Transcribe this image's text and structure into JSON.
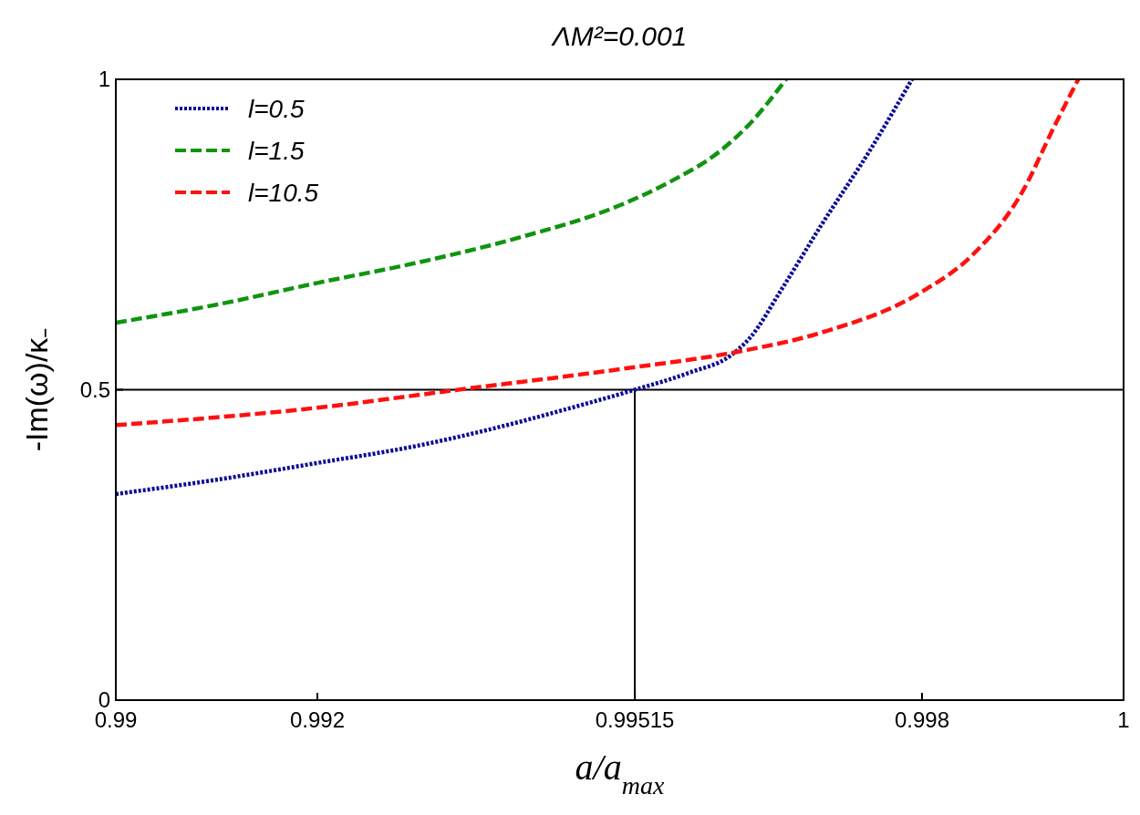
{
  "chart_data": {
    "type": "line",
    "title": "ΛM²=0.001",
    "xlabel": "a/a$_{max}$",
    "ylabel": "-Im(ω)/κ₋",
    "xlim": [
      0.99,
      1
    ],
    "xticks": [
      0.99,
      0.992,
      0.99515,
      0.998,
      1
    ],
    "ylim": [
      0,
      1
    ],
    "yticks": [
      0,
      0.5,
      1
    ],
    "legend": "top left",
    "ref_lines": [
      {
        "axis": "y",
        "value": 0.5,
        "color": "#000000"
      },
      {
        "axis": "x",
        "value": 0.99515,
        "color": "#000000"
      }
    ],
    "series": [
      {
        "name": "l=0.5",
        "color": "#0b0b96",
        "line_style": "dotted",
        "x": [
          0.99,
          0.991,
          0.992,
          0.993,
          0.994,
          0.9945,
          0.99515,
          0.9957,
          0.9961,
          0.9963,
          0.9966,
          0.997,
          0.9975,
          0.9979
        ],
        "values": [
          0.332,
          0.355,
          0.382,
          0.41,
          0.448,
          0.47,
          0.5,
          0.528,
          0.555,
          0.585,
          0.66,
          0.765,
          0.89,
          1.0
        ]
      },
      {
        "name": "l=1.5",
        "color": "#109410",
        "line_style": "dashed",
        "x": [
          0.99,
          0.991,
          0.992,
          0.993,
          0.994,
          0.995,
          0.9955,
          0.996,
          0.9963,
          0.99665
        ],
        "values": [
          0.608,
          0.637,
          0.672,
          0.705,
          0.745,
          0.797,
          0.835,
          0.885,
          0.93,
          1.0
        ]
      },
      {
        "name": "l=10.5",
        "color": "#ff1010",
        "line_style": "dashed",
        "x": [
          0.99,
          0.992,
          0.9934,
          0.995,
          0.9962,
          0.997,
          0.998,
          0.9985,
          0.999,
          0.9993,
          0.99955
        ],
        "values": [
          0.443,
          0.471,
          0.5,
          0.533,
          0.562,
          0.592,
          0.658,
          0.717,
          0.82,
          0.92,
          1.0
        ]
      }
    ]
  }
}
